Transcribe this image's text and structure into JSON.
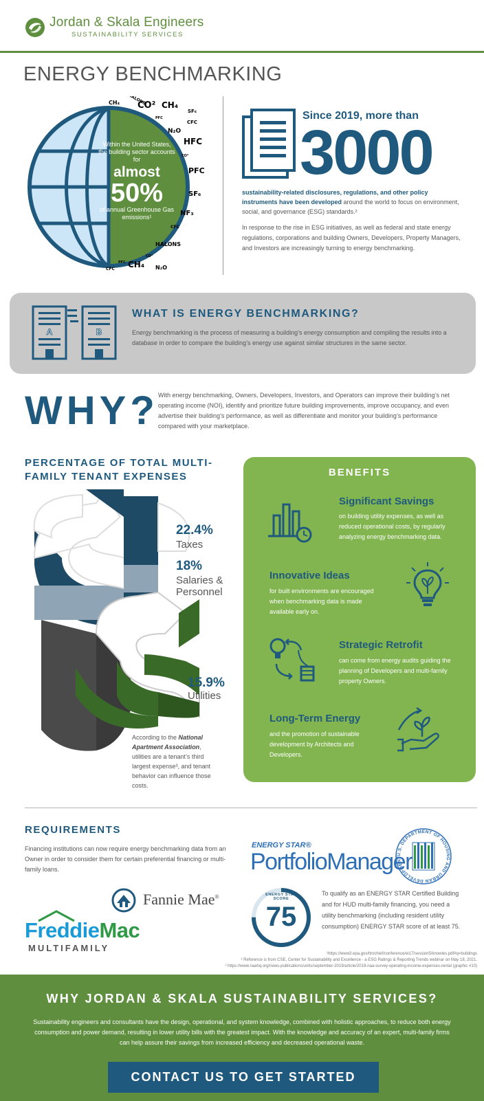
{
  "brand": {
    "name": "Jordan & Skala Engineers",
    "sub": "SUSTAINABILITY SERVICES"
  },
  "page_title": "ENERGY BENCHMARKING",
  "hero": {
    "globe_intro": "Within the United States, the building sector accounts for",
    "globe_big1": "almost",
    "globe_big2": "50%",
    "globe_outro": "of annual Greenhouse Gas emissions¹",
    "gases": [
      "CH₄",
      "HALONS",
      "CO²",
      "CH₄",
      "SF₆",
      "PFC",
      "CFC",
      "N₂O",
      "HFC",
      "CO²",
      "PFC",
      "SF₆",
      "NF₃",
      "CFC",
      "HALONS",
      "CO²",
      "PFC",
      "CH₄",
      "N₂O",
      "CFC"
    ],
    "since": "Since 2019, more than",
    "big_number": "3000",
    "p1_bold": "sustainability-related disclosures, regulations, and other policy instruments have been developed",
    "p1_rest": " around the world to focus on environment, social, and governance (ESG) standards.²",
    "p2": "In response to the rise in ESG initiatives, as well as federal and state energy regulations, corporations and building Owners, Developers, Property Managers, and Investors are increasingly turning to energy benchmarking."
  },
  "what": {
    "title": "WHAT IS ENERGY BENCHMARKING?",
    "text": "Energy benchmarking is the process of measuring a building’s energy consumption and compiling the results into a database in order to compare the building’s energy use against similar structures in the same sector.",
    "labels": [
      "A",
      "B"
    ]
  },
  "why": {
    "title": "WHY?",
    "text": "With energy benchmarking, Owners, Developers, Investors, and Operators can improve their building’s net operating income (NOI), identify and prioritize future building improvements, improve occupancy, and even advertise their building’s performance, as well as differentiate and monitor your building’s performance compared with your marketplace."
  },
  "expenses": {
    "title": "PERCENTAGE OF TOTAL MULTI-FAMILY TENANT EXPENSES",
    "items": [
      {
        "pct": "22.4%",
        "label": "Taxes"
      },
      {
        "pct": "18%",
        "label": "Salaries & Personnel"
      },
      {
        "pct": "15.9%",
        "label": "Utilities"
      }
    ],
    "note_pre": "According to the ",
    "note_bold": "National Apartment Association",
    "note_post": ", utilities are a tenant’s third largest expense³, and tenant behavior can influence those costs."
  },
  "benefits": {
    "title": "BENEFITS",
    "items": [
      {
        "heading": "Significant Savings",
        "text": "on building utility expenses, as well as reduced operational costs, by regularly analyzing energy benchmarking data."
      },
      {
        "heading": "Innovative Ideas",
        "text": "for built environments are encouraged when benchmarking data is made available early on."
      },
      {
        "heading": "Strategic Retrofit",
        "text": "can come from energy audits guiding the planning of Developers and multi-family property Owners."
      },
      {
        "heading": "Long-Term Energy",
        "text": "and the promotion of sustainable development by Architects and Developers."
      }
    ]
  },
  "requirements": {
    "title": "REQUIREMENTS",
    "text": "Financing institutions can now require energy benchmarking data from an Owner in order to consider them for certain preferential financing or multi-family loans.",
    "fannie": "Fannie Mae",
    "fannie_mark": "®",
    "freddie_a": "Freddie",
    "freddie_b": "Mac",
    "freddie_sub": "MULTIFAMILY",
    "energy_star_small": "ENERGY STAR®",
    "energy_star_big": "PortfolioManager®",
    "hud_seal_text": "U.S. DEPARTMENT OF HOUSING AND URBAN DEVELOPMENT",
    "score_caption_1": "ENERGY STAR",
    "score_caption_2": "SCORE",
    "score": "75",
    "score_progress": 0.75,
    "score_text": "To qualify as an ENERGY STAR Certified Building and for HUD multi-family financing, you need a utility benchmarking (including resident utility consumption) ENERGY STAR score of at least 75."
  },
  "footnotes": [
    "¹https://www3.epa.gov/ttn/chief/conference/ei17/session5/knowles.pdf#q=buildings",
    "² Reference is from CSE, Center for Sustainability and Excellence - a ESG Ratings & Reporting Trends webinar on May 18, 2021.",
    "³ https://www.naahq.org/news-publications/units/september-2019/article/2019-naa-survey-operating-income-expenses-rental (graphic #10)"
  ],
  "footer": {
    "title": "WHY JORDAN & SKALA SUSTAINABILITY SERVICES?",
    "text": "Sustainability engineers and consultants have the design, operational, and system knowledge, combined with holistic approaches, to reduce both energy consumption and power demand, resulting in lower utility bills with the greatest impact. With the knowledge and accuracy of an expert, multi-family firms can help assure their savings from increased efficiency and decreased operational waste.",
    "cta": "CONTACT US TO GET STARTED"
  },
  "colors": {
    "green": "#5f8f3e",
    "light_green": "#82b54f",
    "navy": "#1f5a7e",
    "gray_box": "#c8c8c8",
    "globe_blue": "#cde6f7"
  }
}
